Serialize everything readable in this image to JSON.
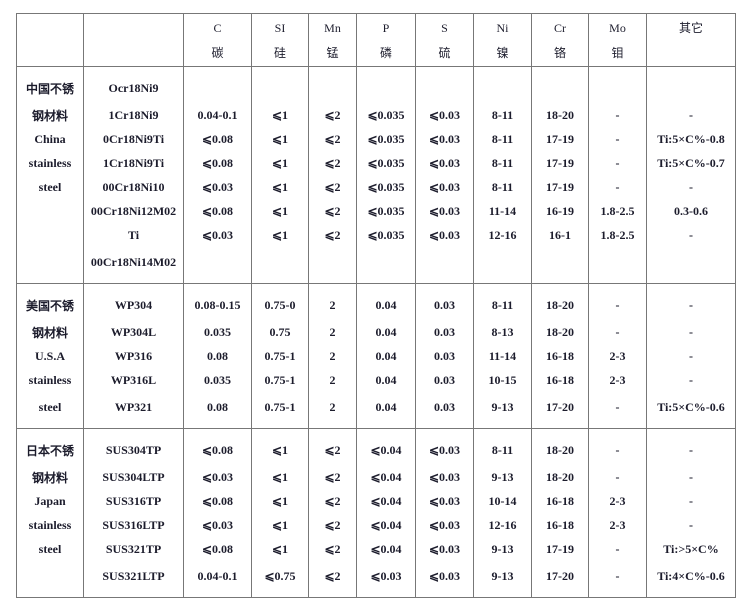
{
  "header": {
    "columns": [
      {
        "symbol": "",
        "name": ""
      },
      {
        "symbol": "",
        "name": ""
      },
      {
        "symbol": "C",
        "name": "碳"
      },
      {
        "symbol": "SI",
        "name": "硅"
      },
      {
        "symbol": "Mn",
        "name": "锰"
      },
      {
        "symbol": "P",
        "name": "磷"
      },
      {
        "symbol": "S",
        "name": "硫"
      },
      {
        "symbol": "Ni",
        "name": "镍"
      },
      {
        "symbol": "Cr",
        "name": "铬"
      },
      {
        "symbol": "Mo",
        "name": "钼"
      },
      {
        "symbol": "其它",
        "name": ""
      }
    ]
  },
  "sections": [
    {
      "label_lines": [
        "中国不锈",
        "钢材料",
        "China",
        "stainless",
        "steel"
      ],
      "rows": [
        [
          "Ocr18Ni9",
          "",
          "",
          "",
          "",
          "",
          "",
          "",
          "",
          ""
        ],
        [
          "1Cr18Ni9",
          "0.04-0.1",
          "⩽1",
          "⩽2",
          "⩽0.035",
          "⩽0.03",
          "8-11",
          "18-20",
          "-",
          "-"
        ],
        [
          "0Cr18Ni9Ti",
          "⩽0.08",
          "⩽1",
          "⩽2",
          "⩽0.035",
          "⩽0.03",
          "8-11",
          "17-19",
          "-",
          "Ti:5×C%-0.8"
        ],
        [
          "1Cr18Ni9Ti",
          "⩽0.08",
          "⩽1",
          "⩽2",
          "⩽0.035",
          "⩽0.03",
          "8-11",
          "17-19",
          "-",
          "Ti:5×C%-0.7"
        ],
        [
          "00Cr18Ni10",
          "⩽0.03",
          "⩽1",
          "⩽2",
          "⩽0.035",
          "⩽0.03",
          "8-11",
          "17-19",
          "-",
          "-"
        ],
        [
          "00Cr18Ni12M02",
          "⩽0.08",
          "⩽1",
          "⩽2",
          "⩽0.035",
          "⩽0.03",
          "11-14",
          "16-19",
          "1.8-2.5",
          "0.3-0.6"
        ],
        [
          "Ti",
          "⩽0.03",
          "⩽1",
          "⩽2",
          "⩽0.035",
          "⩽0.03",
          "12-16",
          "16-1",
          "1.8-2.5",
          "-"
        ],
        [
          "00Cr18Ni14M02",
          "",
          "",
          "",
          "",
          "",
          "",
          "",
          "",
          ""
        ]
      ]
    },
    {
      "label_lines": [
        "美国不锈",
        "钢材料",
        "U.S.A",
        "stainless",
        "steel"
      ],
      "rows": [
        [
          "WP304",
          "0.08-0.15",
          "0.75-0",
          "2",
          "0.04",
          "0.03",
          "8-11",
          "18-20",
          "-",
          "-"
        ],
        [
          "WP304L",
          "0.035",
          "0.75",
          "2",
          "0.04",
          "0.03",
          "8-13",
          "18-20",
          "-",
          "-"
        ],
        [
          "WP316",
          "0.08",
          "0.75-1",
          "2",
          "0.04",
          "0.03",
          "11-14",
          "16-18",
          "2-3",
          "-"
        ],
        [
          "WP316L",
          "0.035",
          "0.75-1",
          "2",
          "0.04",
          "0.03",
          "10-15",
          "16-18",
          "2-3",
          "-"
        ],
        [
          "WP321",
          "0.08",
          "0.75-1",
          "2",
          "0.04",
          "0.03",
          "9-13",
          "17-20",
          "-",
          "Ti:5×C%-0.6"
        ]
      ]
    },
    {
      "label_lines": [
        "日本不锈",
        "钢材料",
        "Japan",
        "stainless",
        "steel"
      ],
      "rows": [
        [
          "SUS304TP",
          "⩽0.08",
          "⩽1",
          "⩽2",
          "⩽0.04",
          "⩽0.03",
          "8-11",
          "18-20",
          "-",
          "-"
        ],
        [
          "SUS304LTP",
          "⩽0.03",
          "⩽1",
          "⩽2",
          "⩽0.04",
          "⩽0.03",
          "9-13",
          "18-20",
          "-",
          "-"
        ],
        [
          "SUS316TP",
          "⩽0.08",
          "⩽1",
          "⩽2",
          "⩽0.04",
          "⩽0.03",
          "10-14",
          "16-18",
          "2-3",
          "-"
        ],
        [
          "SUS316LTP",
          "⩽0.03",
          "⩽1",
          "⩽2",
          "⩽0.04",
          "⩽0.03",
          "12-16",
          "16-18",
          "2-3",
          "-"
        ],
        [
          "SUS321TP",
          "⩽0.08",
          "⩽1",
          "⩽2",
          "⩽0.04",
          "⩽0.03",
          "9-13",
          "17-19",
          "-",
          "Ti:>5×C%"
        ],
        [
          "SUS321LTP",
          "0.04-0.1",
          "⩽0.75",
          "⩽2",
          "⩽0.03",
          "⩽0.03",
          "9-13",
          "17-20",
          "-",
          "Ti:4×C%-0.6"
        ]
      ]
    }
  ]
}
